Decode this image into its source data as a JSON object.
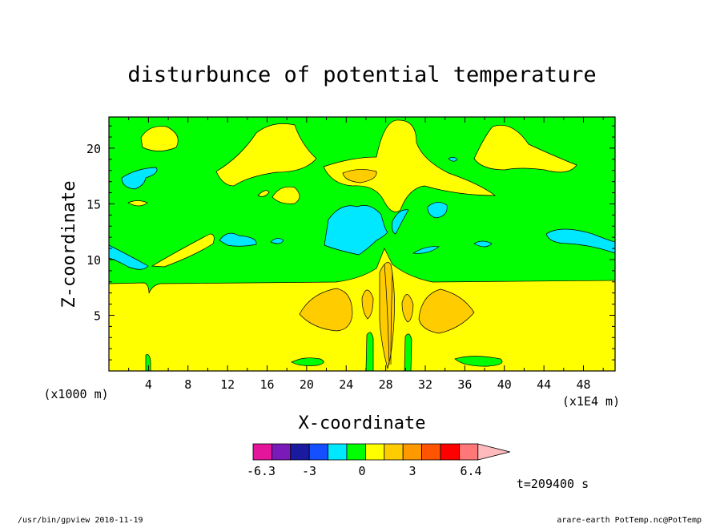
{
  "chart_data": {
    "type": "heatmap",
    "title": "disturbunce of potential temperature",
    "xlabel": "X-coordinate",
    "ylabel": "Z-coordinate",
    "x_unit_label": "(x1000 m)",
    "x_scale_label": "(x1E4 m)",
    "xlim": [
      0,
      51.2
    ],
    "ylim": [
      0,
      22.8
    ],
    "xticks": [
      "4",
      "8",
      "12",
      "16",
      "20",
      "24",
      "28",
      "32",
      "36",
      "40",
      "44",
      "48"
    ],
    "yticks": [
      "5",
      "10",
      "15",
      "20"
    ],
    "time_label": "t=209400 s",
    "colorbar": {
      "labels": [
        "-6.3",
        "-3",
        "0",
        "3",
        "6.4"
      ],
      "colors": [
        "#e4149b",
        "#7a1ab8",
        "#1a1aa0",
        "#1450ff",
        "#00e8ff",
        "#00ff00",
        "#ffff00",
        "#ffcc00",
        "#ff9900",
        "#ff5500",
        "#ff0000",
        "#ff7777",
        "#ffbbbb"
      ]
    },
    "contour_regions": [
      {
        "level": "background",
        "color": "#00ff00"
      },
      {
        "level": "lower-positive",
        "color": "#ffff00"
      },
      {
        "level": "positive",
        "color": "#ffcc00"
      },
      {
        "level": "negative",
        "color": "#00e8ff"
      }
    ]
  },
  "footer": {
    "left": "/usr/bin/gpview   2010-11-19",
    "right": "arare-earth_PotTemp.nc@PotTemp"
  }
}
